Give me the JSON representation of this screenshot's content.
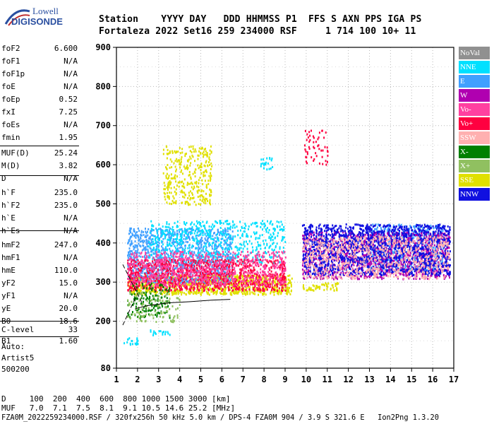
{
  "logo": {
    "line1": "Lowell",
    "line2": "DIGISONDE"
  },
  "header": {
    "columns": "Station    YYYY DAY   DDD HHMMSS P1  FFS S AXN PPS IGA PS",
    "values": "Fortaleza 2022 Set16 259 234000 RSF     1 714 100 10+ 11"
  },
  "params": [
    {
      "name": "foF2",
      "value": "6.600"
    },
    {
      "name": "foF1",
      "value": "N/A"
    },
    {
      "name": "foF1p",
      "value": "N/A"
    },
    {
      "name": "foE",
      "value": "N/A"
    },
    {
      "name": "foEp",
      "value": "0.52"
    },
    {
      "name": "fxI",
      "value": "7.25"
    },
    {
      "name": "foEs",
      "value": "N/A"
    },
    {
      "name": "fmin",
      "value": "1.95"
    },
    {
      "name": "MUF(D)",
      "value": "25.24"
    },
    {
      "name": "M(D)",
      "value": "3.82"
    },
    {
      "name": "D",
      "value": "N/A"
    },
    {
      "name": "h`F",
      "value": "235.0"
    },
    {
      "name": "h`F2",
      "value": "235.0"
    },
    {
      "name": "h`E",
      "value": "N/A"
    },
    {
      "name": "h`Es",
      "value": "N/A"
    },
    {
      "name": "hmF2",
      "value": "247.0"
    },
    {
      "name": "hmF1",
      "value": "N/A"
    },
    {
      "name": "hmE",
      "value": "110.0"
    },
    {
      "name": "yF2",
      "value": "15.0"
    },
    {
      "name": "yF1",
      "value": "N/A"
    },
    {
      "name": "yE",
      "value": "20.0"
    },
    {
      "name": "B0",
      "value": "18.6"
    },
    {
      "name": "B1",
      "value": "1.60"
    },
    {
      "name": "C-level",
      "value": "33"
    }
  ],
  "auto": {
    "line1": "Auto:",
    "line2": "Artist5",
    "line3": "500200"
  },
  "footer": {
    "d_row": "D     100  200  400  600  800 1000 1500 3000 [km]",
    "muf_row": "MUF   7.0  7.1  7.5  8.1  9.1 10.5 14.6 25.2 [MHz]",
    "file_row": "FZA0M_2022259234000.RSF / 320fx256h 50 kHz 5.0 km / DPS-4 FZA0M 904 / 3.9 S 321.6 E   Ion2Png 1.3.20"
  },
  "legend": [
    {
      "label": "NoVal",
      "color": "#909090",
      "text_color": "#ffffff"
    },
    {
      "label": "NNE",
      "color": "#00e0ff",
      "text_color": "#ffffff"
    },
    {
      "label": "E",
      "color": "#40a0ff",
      "text_color": "#ffffff"
    },
    {
      "label": "W",
      "color": "#b000b0",
      "text_color": "#ffffff"
    },
    {
      "label": "Vo-",
      "color": "#ff40a0",
      "text_color": "#ffffff"
    },
    {
      "label": "Vo+",
      "color": "#ff0040",
      "text_color": "#ffffff"
    },
    {
      "label": "SSW",
      "color": "#ffb0b0",
      "text_color": "#ffffff"
    },
    {
      "label": "X-",
      "color": "#008000",
      "text_color": "#ffffff"
    },
    {
      "label": "X+",
      "color": "#90c060",
      "text_color": "#ffffff"
    },
    {
      "label": "SSE",
      "color": "#e0e000",
      "text_color": "#ffffff"
    },
    {
      "label": "NNW",
      "color": "#1010e0",
      "text_color": "#ffffff"
    }
  ],
  "chart_data": {
    "type": "scatter",
    "title": "",
    "xlabel": "",
    "ylabel": "",
    "xlim": [
      1,
      17
    ],
    "ylim": [
      80,
      900
    ],
    "x_ticks": [
      1,
      2,
      3,
      4,
      5,
      6,
      7,
      8,
      9,
      10,
      11,
      12,
      13,
      14,
      15,
      16,
      17
    ],
    "y_ticks": [
      80,
      200,
      300,
      400,
      500,
      600,
      700,
      800,
      900
    ],
    "grid": true,
    "clusters": [
      {
        "polarization": "SSE",
        "x_range": [
          1.5,
          9.3
        ],
        "y_range": [
          270,
          320
        ],
        "density": 0.9
      },
      {
        "polarization": "SSE",
        "x_range": [
          3.2,
          5.5
        ],
        "y_range": [
          500,
          650
        ],
        "density": 0.35
      },
      {
        "polarization": "SSE",
        "x_range": [
          9.8,
          11.5
        ],
        "y_range": [
          280,
          300
        ],
        "density": 0.6
      },
      {
        "polarization": "E",
        "x_range": [
          1.5,
          6.5
        ],
        "y_range": [
          300,
          440
        ],
        "density": 0.6
      },
      {
        "polarization": "E",
        "x_range": [
          13.0,
          16.5
        ],
        "y_range": [
          330,
          450
        ],
        "density": 0.5
      },
      {
        "polarization": "NNE",
        "x_range": [
          2.5,
          9.0
        ],
        "y_range": [
          350,
          460
        ],
        "density": 0.3
      },
      {
        "polarization": "Vo+",
        "x_range": [
          1.5,
          9.0
        ],
        "y_range": [
          280,
          360
        ],
        "density": 0.6
      },
      {
        "polarization": "Vo-",
        "x_range": [
          1.5,
          9.0
        ],
        "y_range": [
          290,
          380
        ],
        "density": 0.4
      },
      {
        "polarization": "W",
        "x_range": [
          9.8,
          16.8
        ],
        "y_range": [
          310,
          430
        ],
        "density": 0.5
      },
      {
        "polarization": "NNW",
        "x_range": [
          9.8,
          16.8
        ],
        "y_range": [
          320,
          450
        ],
        "density": 0.6
      },
      {
        "polarization": "SSW",
        "x_range": [
          9.8,
          16.8
        ],
        "y_range": [
          310,
          420
        ],
        "density": 0.35
      },
      {
        "polarization": "X-",
        "x_range": [
          1.5,
          3.5
        ],
        "y_range": [
          210,
          300
        ],
        "density": 0.3
      },
      {
        "polarization": "X+",
        "x_range": [
          1.5,
          4.0
        ],
        "y_range": [
          200,
          280
        ],
        "density": 0.2
      },
      {
        "polarization": "NNE",
        "x_range": [
          1.3,
          2.0
        ],
        "y_range": [
          140,
          160
        ],
        "density": 0.5
      },
      {
        "polarization": "NNE",
        "x_range": [
          2.5,
          3.5
        ],
        "y_range": [
          165,
          180
        ],
        "density": 0.4
      },
      {
        "polarization": "NNE",
        "x_range": [
          7.8,
          8.4
        ],
        "y_range": [
          590,
          620
        ],
        "density": 0.4
      },
      {
        "polarization": "Vo+",
        "x_range": [
          9.9,
          11.0
        ],
        "y_range": [
          600,
          690
        ],
        "density": 0.2
      }
    ],
    "profile_curve": {
      "x": [
        1.9,
        2.5,
        3.5,
        4.5,
        5.5,
        6.4
      ],
      "y": [
        232,
        240,
        247,
        250,
        254,
        256
      ]
    },
    "trace_lines": [
      {
        "x": [
          1.3,
          2.2
        ],
        "y": [
          345,
          248
        ]
      },
      {
        "x": [
          1.3,
          1.9
        ],
        "y": [
          190,
          260
        ]
      }
    ]
  }
}
